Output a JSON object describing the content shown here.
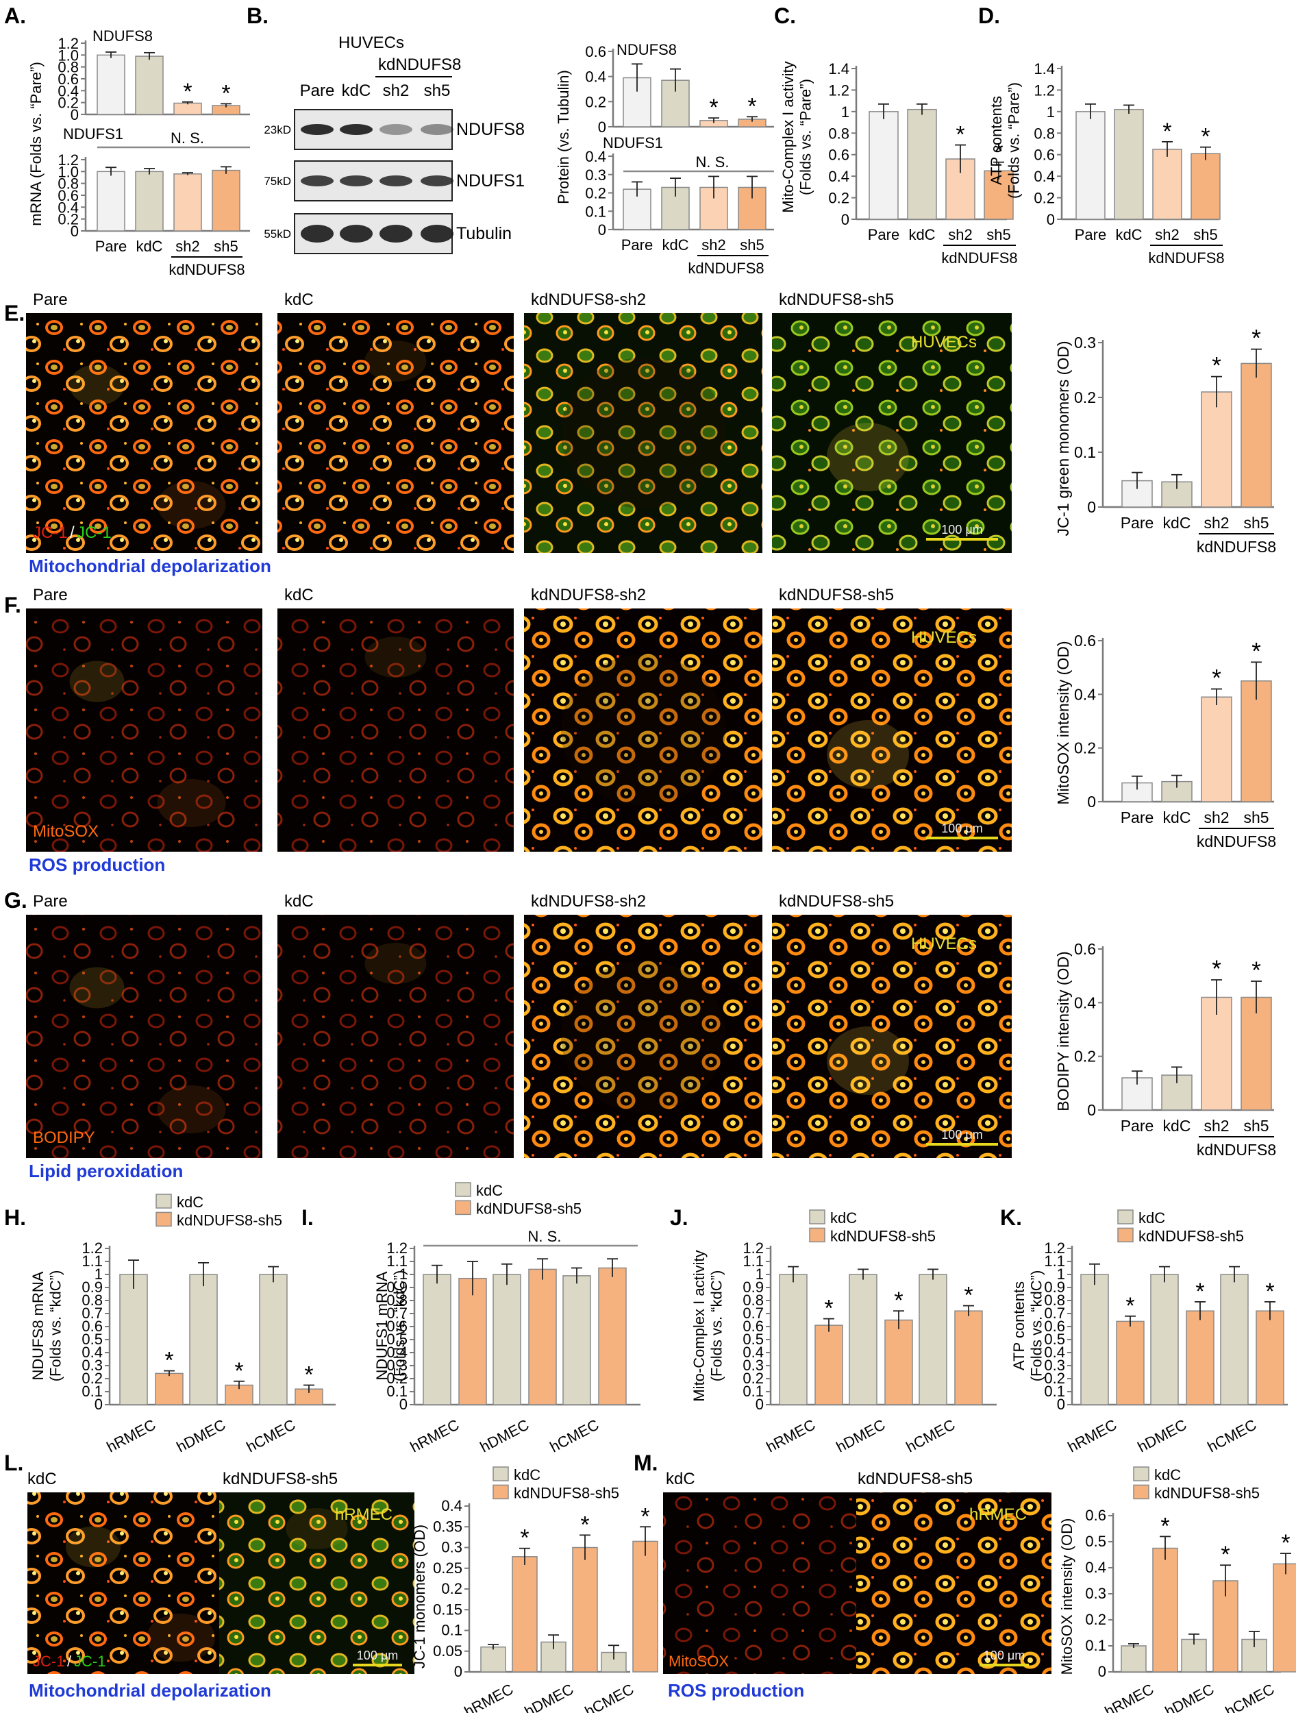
{
  "figure": {
    "colors": {
      "pare": "#f2f2f2",
      "kdC": "#dcd8c6",
      "sh2": "#fbd2b4",
      "sh5": "#f5b27e",
      "blueCaption": "#1f3ad6",
      "scaleBar": "#e8d81e",
      "imageYellowText": "#e8e030"
    },
    "panels": [
      {
        "id": "A",
        "label": "A."
      },
      {
        "id": "B",
        "label": "B."
      },
      {
        "id": "C",
        "label": "C."
      },
      {
        "id": "D",
        "label": "D."
      },
      {
        "id": "E",
        "label": "E."
      },
      {
        "id": "F",
        "label": "F."
      },
      {
        "id": "G",
        "label": "G."
      },
      {
        "id": "H",
        "label": "H."
      },
      {
        "id": "I",
        "label": "I."
      },
      {
        "id": "J",
        "label": "J."
      },
      {
        "id": "K",
        "label": "K."
      },
      {
        "id": "L",
        "label": "L."
      },
      {
        "id": "M",
        "label": "M."
      }
    ],
    "blot": {
      "title": "HUVECs",
      "group": "kdNDUFS8",
      "lanes": [
        "Pare",
        "kdC",
        "sh2",
        "sh5"
      ],
      "rows": [
        {
          "marker": "23kD",
          "protein": "NDUFS8"
        },
        {
          "marker": "75kD",
          "protein": "NDUFS1"
        },
        {
          "marker": "55kD",
          "protein": "Tubulin"
        }
      ]
    },
    "micrographs": [
      {
        "panel": "E",
        "titles": [
          "Pare",
          "kdC",
          "kdNDUFS8-sh2",
          "kdNDUFS8-sh5"
        ],
        "cellLine": "HUVECs",
        "stainRed": "JC-1",
        "stainSep": "/",
        "stainGreen": "JC-1",
        "scale": "100 μm",
        "caption": "Mitochondrial depolarization"
      },
      {
        "panel": "F",
        "titles": [
          "Pare",
          "kdC",
          "kdNDUFS8-sh2",
          "kdNDUFS8-sh5"
        ],
        "cellLine": "HUVECs",
        "stain": "MitoSOX",
        "scale": "100 μm",
        "caption": "ROS production"
      },
      {
        "panel": "G",
        "titles": [
          "Pare",
          "kdC",
          "kdNDUFS8-sh2",
          "kdNDUFS8-sh5"
        ],
        "cellLine": "HUVECs",
        "stain": "BODIPY",
        "scale": "100 μm",
        "caption": "Lipid peroxidation"
      },
      {
        "panel": "L",
        "titles": [
          "kdC",
          "kdNDUFS8-sh5"
        ],
        "cellLine": "hRMEC",
        "stainRed": "JC-1",
        "stainSep": "/",
        "stainGreen": "JC-1",
        "scale": "100 μm",
        "caption": "Mitochondrial depolarization"
      },
      {
        "panel": "M",
        "titles": [
          "kdC",
          "kdNDUFS8-sh5"
        ],
        "cellLine": "hRMEC",
        "stain": "MitoSOX",
        "scale": "100 μm",
        "caption": "ROS production"
      }
    ]
  },
  "chart_data": [
    {
      "id": "A1",
      "type": "bar",
      "title": "NDUFS8",
      "ylabel": "mRNA (Folds vs. “Pare”)",
      "ylim": [
        0,
        1.2
      ],
      "ticks": [
        "0",
        "0.2",
        "0.4",
        "0.6",
        "0.8",
        "1.0",
        "1.2"
      ],
      "categories": [
        "Pare",
        "kdC",
        "sh2",
        "sh5"
      ],
      "values": [
        1.0,
        0.98,
        0.19,
        0.15
      ],
      "errors": [
        0.05,
        0.06,
        0.02,
        0.03
      ],
      "stars": [
        false,
        false,
        true,
        true
      ]
    },
    {
      "id": "A2",
      "type": "bar",
      "title": "NDUFS1",
      "ns": "N. S.",
      "ylim": [
        0,
        1.2
      ],
      "ticks": [
        "0",
        "0.2",
        "0.4",
        "0.6",
        "0.8",
        "1.0",
        "1.2"
      ],
      "categories": [
        "Pare",
        "kdC",
        "sh2",
        "sh5"
      ],
      "values": [
        1.0,
        1.0,
        0.96,
        1.02
      ],
      "errors": [
        0.07,
        0.05,
        0.02,
        0.06
      ],
      "stars": [
        false,
        false,
        false,
        false
      ],
      "group": "kdNDUFS8"
    },
    {
      "id": "B1",
      "type": "bar",
      "title": "NDUFS8",
      "ylim": [
        0,
        0.6
      ],
      "ticks": [
        "0",
        "0.2",
        "0.4",
        "0.6"
      ],
      "categories": [
        "Pare",
        "kdC",
        "sh2",
        "sh5"
      ],
      "values": [
        0.39,
        0.37,
        0.05,
        0.06
      ],
      "errors": [
        0.11,
        0.09,
        0.02,
        0.02
      ],
      "stars": [
        false,
        false,
        true,
        true
      ]
    },
    {
      "id": "B2",
      "type": "bar",
      "title": "NDUFS1",
      "ns": "N. S.",
      "ylabel": "Protein (vs. Tubulin)",
      "ylim": [
        0,
        0.4
      ],
      "ticks": [
        "0",
        "0.1",
        "0.2",
        "0.3",
        "0.4"
      ],
      "categories": [
        "Pare",
        "kdC",
        "sh2",
        "sh5"
      ],
      "values": [
        0.22,
        0.23,
        0.23,
        0.23
      ],
      "errors": [
        0.04,
        0.05,
        0.06,
        0.06
      ],
      "stars": [
        false,
        false,
        false,
        false
      ],
      "group": "kdNDUFS8"
    },
    {
      "id": "C",
      "type": "bar",
      "ylabel": "Mito-Complex I activity (Folds vs. “Pare”)",
      "ylim": [
        0,
        1.4
      ],
      "ticks": [
        "0",
        "0.2",
        "0.4",
        "0.6",
        "0.8",
        "1",
        "1.2",
        "1.4"
      ],
      "categories": [
        "Pare",
        "kdC",
        "sh2",
        "sh5"
      ],
      "values": [
        1.0,
        1.02,
        0.56,
        0.45
      ],
      "errors": [
        0.07,
        0.05,
        0.13,
        0.08
      ],
      "stars": [
        false,
        false,
        true,
        true
      ],
      "group": "kdNDUFS8"
    },
    {
      "id": "D",
      "type": "bar",
      "ylabel": "ATP contents (Folds vs. “Pare”)",
      "ylim": [
        0,
        1.4
      ],
      "ticks": [
        "0",
        "0.2",
        "0.4",
        "0.6",
        "0.8",
        "1",
        "1.2",
        "1.4"
      ],
      "categories": [
        "Pare",
        "kdC",
        "sh2",
        "sh5"
      ],
      "values": [
        1.0,
        1.02,
        0.65,
        0.61
      ],
      "errors": [
        0.07,
        0.04,
        0.07,
        0.06
      ],
      "stars": [
        false,
        false,
        true,
        true
      ],
      "group": "kdNDUFS8"
    },
    {
      "id": "E",
      "type": "bar",
      "ylabel": "JC-1 green monomers (OD)",
      "ylim": [
        0,
        0.3
      ],
      "ticks": [
        "0",
        "0.1",
        "0.2",
        "0.3"
      ],
      "categories": [
        "Pare",
        "kdC",
        "sh2",
        "sh5"
      ],
      "values": [
        0.048,
        0.046,
        0.21,
        0.262
      ],
      "errors": [
        0.015,
        0.013,
        0.028,
        0.026
      ],
      "stars": [
        false,
        false,
        true,
        true
      ],
      "group": "kdNDUFS8"
    },
    {
      "id": "F",
      "type": "bar",
      "ylabel": "MitoSOX intensity (OD)",
      "ylim": [
        0,
        0.6
      ],
      "ticks": [
        "0",
        "0.2",
        "0.4",
        "0.6"
      ],
      "categories": [
        "Pare",
        "kdC",
        "sh2",
        "sh5"
      ],
      "values": [
        0.07,
        0.075,
        0.39,
        0.45
      ],
      "errors": [
        0.025,
        0.023,
        0.03,
        0.07
      ],
      "stars": [
        false,
        false,
        true,
        true
      ],
      "group": "kdNDUFS8"
    },
    {
      "id": "G",
      "type": "bar",
      "ylabel": "BODIPY intensity (OD)",
      "ylim": [
        0,
        0.6
      ],
      "ticks": [
        "0",
        "0.2",
        "0.4",
        "0.6"
      ],
      "categories": [
        "Pare",
        "kdC",
        "sh2",
        "sh5"
      ],
      "values": [
        0.12,
        0.13,
        0.42,
        0.42
      ],
      "errors": [
        0.025,
        0.03,
        0.065,
        0.06
      ],
      "stars": [
        false,
        false,
        true,
        true
      ],
      "group": "kdNDUFS8"
    },
    {
      "id": "H",
      "type": "bar",
      "ylabel": "NDUFS8 mRNA (Folds vs. “kdC”)",
      "ylim": [
        0,
        1.2
      ],
      "ticks": [
        "0",
        "0.1",
        "0.2",
        "0.3",
        "0.4",
        "0.5",
        "0.6",
        "0.7",
        "0.8",
        "0.9",
        "1",
        "1.1",
        "1.2"
      ],
      "categories": [
        "hRMEC",
        "hDMEC",
        "hCMEC"
      ],
      "series": [
        {
          "name": "kdC",
          "values": [
            1.0,
            1.0,
            1.0
          ],
          "errors": [
            0.11,
            0.09,
            0.06
          ]
        },
        {
          "name": "kdNDUFS8-sh5",
          "values": [
            0.24,
            0.15,
            0.12
          ],
          "errors": [
            0.02,
            0.03,
            0.03
          ]
        }
      ],
      "stars": [
        true,
        true,
        true
      ]
    },
    {
      "id": "I",
      "type": "bar",
      "ylabel": "NDUFS1 mRNA (Folds vs. “kdC”)",
      "ns": "N. S.",
      "ylim": [
        0,
        1.2
      ],
      "ticks": [
        "0",
        "0.1",
        "0.2",
        "0.3",
        "0.4",
        "0.5",
        "0.6",
        "0.7",
        "0.8",
        "0.9",
        "1",
        "1.1",
        "1.2"
      ],
      "categories": [
        "hRMEC",
        "hDMEC",
        "hCMEC"
      ],
      "series": [
        {
          "name": "kdC",
          "values": [
            1.0,
            1.0,
            0.99
          ],
          "errors": [
            0.07,
            0.08,
            0.06
          ]
        },
        {
          "name": "kdNDUFS8-sh5",
          "values": [
            0.97,
            1.04,
            1.05
          ],
          "errors": [
            0.13,
            0.08,
            0.07
          ]
        }
      ],
      "stars": [
        false,
        false,
        false
      ]
    },
    {
      "id": "J",
      "type": "bar",
      "ylabel": "Mito-Complex I activity (Folds vs. “kdC”)",
      "ylim": [
        0,
        1.2
      ],
      "ticks": [
        "0",
        "0.1",
        "0.2",
        "0.3",
        "0.4",
        "0.5",
        "0.6",
        "0.7",
        "0.8",
        "0.9",
        "1",
        "1.1",
        "1.2"
      ],
      "categories": [
        "hRMEC",
        "hDMEC",
        "hCMEC"
      ],
      "series": [
        {
          "name": "kdC",
          "values": [
            1.0,
            1.0,
            1.0
          ],
          "errors": [
            0.06,
            0.04,
            0.04
          ]
        },
        {
          "name": "kdNDUFS8-sh5",
          "values": [
            0.61,
            0.65,
            0.72
          ],
          "errors": [
            0.05,
            0.07,
            0.04
          ]
        }
      ],
      "stars": [
        true,
        true,
        true
      ]
    },
    {
      "id": "K",
      "type": "bar",
      "ylabel": "ATP contents (Folds vs. “kdC”)",
      "ylim": [
        0,
        1.2
      ],
      "ticks": [
        "0",
        "0.1",
        "0.2",
        "0.3",
        "0.4",
        "0.5",
        "0.6",
        "0.7",
        "0.8",
        "0.9",
        "1",
        "1.1",
        "1.2"
      ],
      "categories": [
        "hRMEC",
        "hDMEC",
        "hCMEC"
      ],
      "series": [
        {
          "name": "kdC",
          "values": [
            1.0,
            1.0,
            1.0
          ],
          "errors": [
            0.08,
            0.06,
            0.06
          ]
        },
        {
          "name": "kdNDUFS8-sh5",
          "values": [
            0.64,
            0.72,
            0.72
          ],
          "errors": [
            0.04,
            0.07,
            0.07
          ]
        }
      ],
      "stars": [
        true,
        true,
        true
      ]
    },
    {
      "id": "L",
      "type": "bar",
      "ylabel": "JC-1 monomers (OD)",
      "ylim": [
        0,
        0.4
      ],
      "ticks": [
        "0",
        "0.05",
        "0.1",
        "0.15",
        "0.2",
        "0.25",
        "0.3",
        "0.35",
        "0.4"
      ],
      "categories": [
        "hRMEC",
        "hDMEC",
        "hCMEC"
      ],
      "series": [
        {
          "name": "kdC",
          "values": [
            0.06,
            0.072,
            0.047
          ],
          "errors": [
            0.006,
            0.017,
            0.017
          ]
        },
        {
          "name": "kdNDUFS8-sh5",
          "values": [
            0.278,
            0.3,
            0.315
          ],
          "errors": [
            0.02,
            0.03,
            0.035
          ]
        }
      ],
      "stars": [
        true,
        true,
        true
      ]
    },
    {
      "id": "M",
      "type": "bar",
      "ylabel": "MitoSOX intensity (OD)",
      "ylim": [
        0,
        0.6
      ],
      "ticks": [
        "0",
        "0.1",
        "0.2",
        "0.3",
        "0.4",
        "0.5",
        "0.6"
      ],
      "categories": [
        "hRMEC",
        "hDMEC",
        "hCMEC"
      ],
      "series": [
        {
          "name": "kdC",
          "values": [
            0.1,
            0.125,
            0.125
          ],
          "errors": [
            0.008,
            0.02,
            0.03
          ]
        },
        {
          "name": "kdNDUFS8-sh5",
          "values": [
            0.475,
            0.35,
            0.415
          ],
          "errors": [
            0.045,
            0.06,
            0.04
          ]
        }
      ],
      "stars": [
        true,
        true,
        true
      ]
    }
  ]
}
